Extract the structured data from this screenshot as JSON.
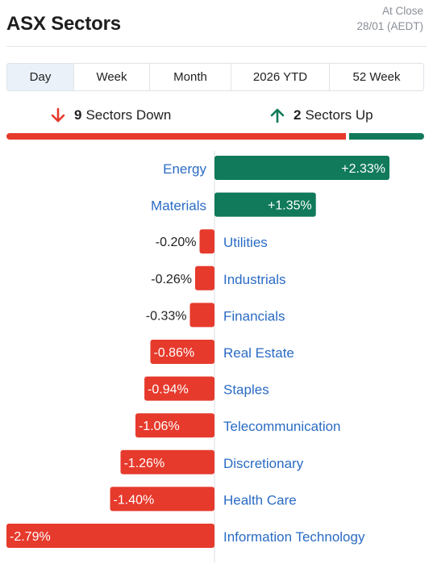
{
  "header": {
    "title": "ASX Sectors",
    "status": "At Close",
    "date": "28/01 (AEDT)"
  },
  "tabs": [
    {
      "label": "Day",
      "active": true
    },
    {
      "label": "Week",
      "active": false
    },
    {
      "label": "Month",
      "active": false
    },
    {
      "label": "2026 YTD",
      "active": false
    },
    {
      "label": "52 Week",
      "active": false
    }
  ],
  "summary": {
    "down_count": "9",
    "down_label": "Sectors Down",
    "up_count": "2",
    "up_label": "Sectors Up"
  },
  "colors": {
    "up": "#107a5a",
    "down": "#e63a2c",
    "label": "#2a6bc4",
    "axis": "#dcdfe3"
  },
  "chart_data": {
    "type": "bar",
    "orientation": "horizontal",
    "categories": [
      "Energy",
      "Materials",
      "Utilities",
      "Industrials",
      "Financials",
      "Real Estate",
      "Staples",
      "Telecommunication",
      "Discretionary",
      "Health Care",
      "Information Technology"
    ],
    "values": [
      2.33,
      1.35,
      -0.2,
      -0.26,
      -0.33,
      -0.86,
      -0.94,
      -1.06,
      -1.26,
      -1.4,
      -2.79
    ],
    "labels": [
      "+2.33%",
      "+1.35%",
      "-0.20%",
      "-0.26%",
      "-0.33%",
      "-0.86%",
      "-0.94%",
      "-1.06%",
      "-1.26%",
      "-1.40%",
      "-2.79%"
    ],
    "xlim": [
      -2.79,
      2.33
    ],
    "grid": false,
    "legend": "none"
  }
}
